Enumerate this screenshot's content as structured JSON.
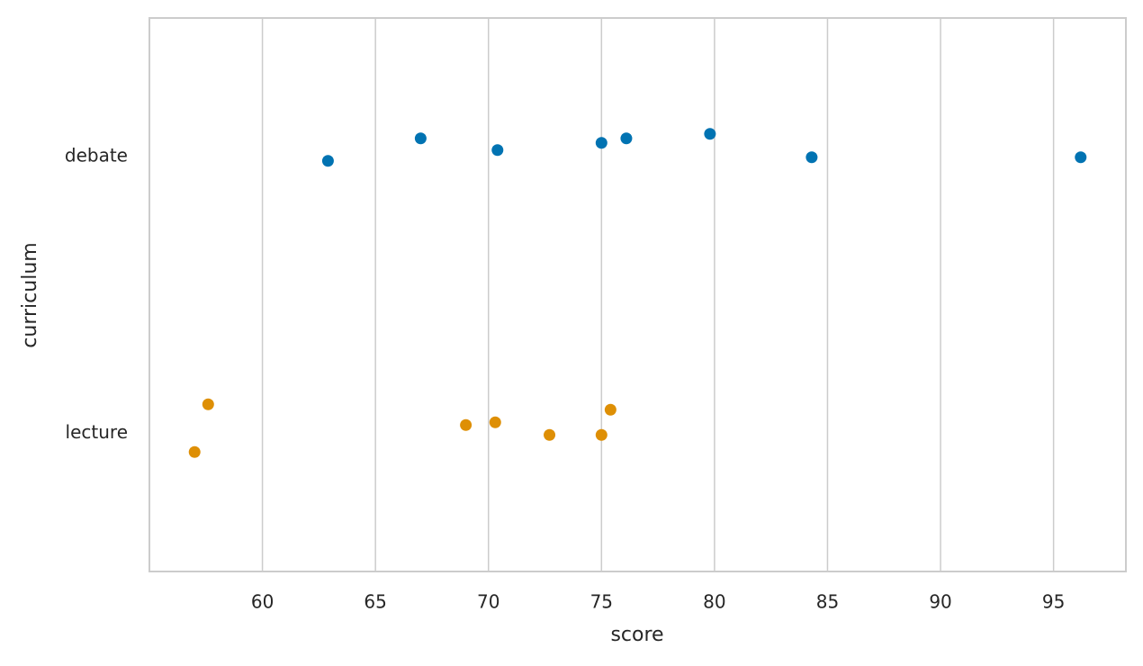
{
  "chart_data": {
    "type": "strip",
    "xlabel": "score",
    "ylabel": "curriculum",
    "categories": [
      "debate",
      "lecture"
    ],
    "colors": [
      "#0173b2",
      "#de8f05"
    ],
    "values": [
      [
        62.9,
        67.0,
        70.4,
        75.0,
        76.1,
        79.8,
        84.3,
        96.2
      ],
      [
        57.6,
        57.0,
        69.0,
        70.3,
        72.7,
        75.0,
        75.4
      ]
    ],
    "xlim": [
      55.0,
      98.2
    ],
    "xticks": [
      60,
      65,
      70,
      75,
      80,
      85,
      90,
      95
    ],
    "grid": true
  }
}
